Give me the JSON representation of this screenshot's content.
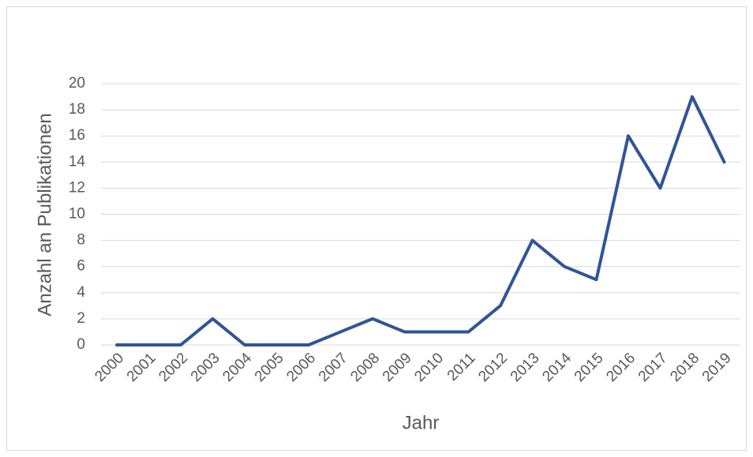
{
  "chart_data": {
    "type": "line",
    "xlabel": "Jahr",
    "ylabel": "Anzahl an Publikationen",
    "categories": [
      "2000",
      "2001",
      "2002",
      "2003",
      "2004",
      "2005",
      "2006",
      "2007",
      "2008",
      "2009",
      "2010",
      "2011",
      "2012",
      "2013",
      "2014",
      "2015",
      "2016",
      "2017",
      "2018",
      "2019"
    ],
    "series": [
      {
        "name": "Publikationen",
        "color": "#2f5597",
        "values": [
          0,
          0,
          0,
          2,
          0,
          0,
          0,
          1,
          2,
          1,
          1,
          1,
          3,
          8,
          6,
          5,
          16,
          12,
          19,
          14
        ]
      }
    ],
    "ylim": [
      0,
      20
    ],
    "yticks": [
      0,
      2,
      4,
      6,
      8,
      10,
      12,
      14,
      16,
      18,
      20
    ],
    "grid": true
  }
}
